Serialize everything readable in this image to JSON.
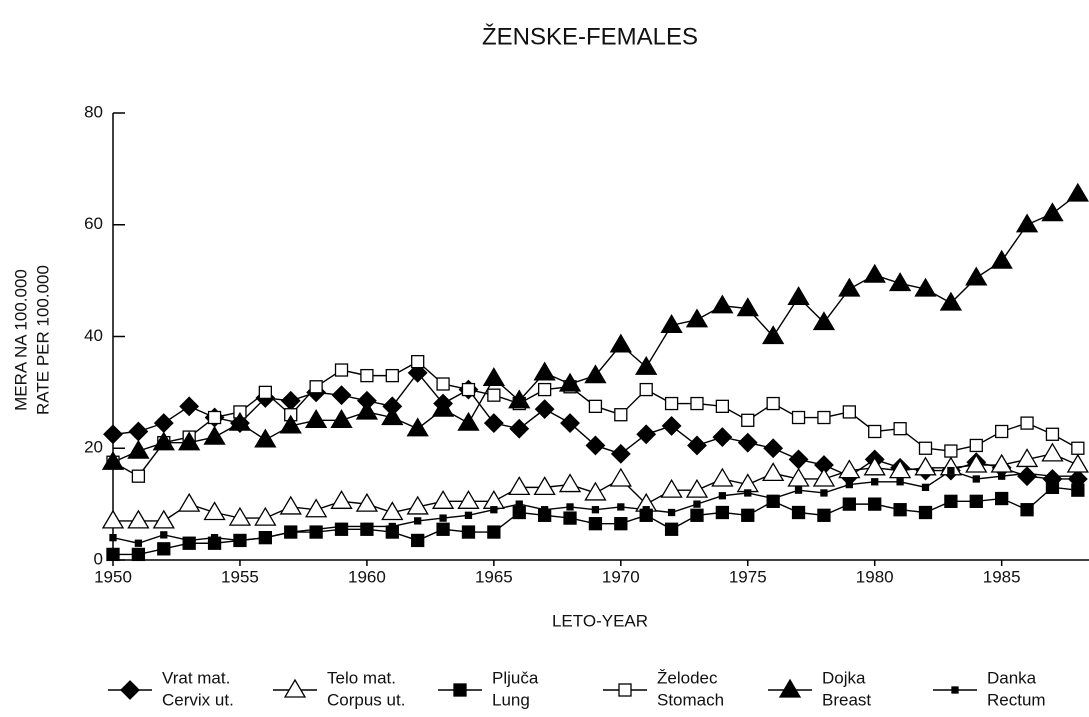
{
  "chart_data": {
    "type": "line",
    "title": "ŽENSKE-FEMALES",
    "xlabel": "LETO-YEAR",
    "ylabel": [
      "MERA NA 100.000",
      "RATE PER 100.000"
    ],
    "x": [
      1950,
      1951,
      1952,
      1953,
      1954,
      1955,
      1956,
      1957,
      1958,
      1959,
      1960,
      1961,
      1962,
      1963,
      1964,
      1965,
      1966,
      1967,
      1968,
      1969,
      1970,
      1971,
      1972,
      1973,
      1974,
      1975,
      1976,
      1977,
      1978,
      1979,
      1980,
      1981,
      1982,
      1983,
      1984,
      1985,
      1986,
      1987,
      1988
    ],
    "xlim": [
      1950,
      1988.4
    ],
    "xticks": [
      1950,
      1955,
      1960,
      1965,
      1970,
      1975,
      1980,
      1985
    ],
    "ylim": [
      0,
      80
    ],
    "yticks": [
      0,
      20,
      40,
      60,
      80
    ],
    "grid": false,
    "legend": "bottom",
    "series": [
      {
        "name": [
          "Vrat mat.",
          "Cervix ut."
        ],
        "color": "#000000",
        "marker": "diamond",
        "filled": true,
        "values": [
          22.5,
          23,
          24.5,
          27.5,
          25.5,
          24.5,
          29,
          28.5,
          30,
          29.5,
          28.5,
          27.5,
          33.5,
          28,
          30.5,
          24.5,
          23.5,
          27,
          24.5,
          20.5,
          19,
          22.5,
          24,
          20.5,
          22,
          21,
          20,
          18,
          17,
          15,
          18,
          16.5,
          16,
          16,
          17.5,
          16.5,
          15,
          14.5,
          14.5
        ]
      },
      {
        "name": [
          "Telo mat.",
          "Corpus ut."
        ],
        "color": "#000000",
        "marker": "triangle",
        "filled": false,
        "values": [
          7,
          7,
          7,
          10,
          8.5,
          7.5,
          7.5,
          9.5,
          9,
          10.5,
          10,
          8.5,
          9.5,
          10.5,
          10.5,
          10.5,
          13,
          13,
          13.5,
          12,
          14.5,
          10,
          12.5,
          12.5,
          14.5,
          13.5,
          15.5,
          14.5,
          14.5,
          16,
          16.5,
          16,
          16.5,
          16.5,
          17,
          17,
          18,
          19,
          17
        ]
      },
      {
        "name": [
          "Pljuča",
          "Lung"
        ],
        "color": "#000000",
        "marker": "square",
        "filled": true,
        "values": [
          1,
          1,
          2,
          3,
          3,
          3.5,
          4,
          5,
          5,
          5.5,
          5.5,
          5,
          3.5,
          5.5,
          5,
          5,
          8.5,
          8,
          7.5,
          6.5,
          6.5,
          8,
          5.5,
          8,
          8.5,
          8,
          10.5,
          8.5,
          8,
          10,
          10,
          9,
          8.5,
          10.5,
          10.5,
          11,
          9,
          13,
          12.5
        ]
      },
      {
        "name": [
          "Želodec",
          "Stomach"
        ],
        "color": "#000000",
        "marker": "square",
        "filled": false,
        "values": [
          17.5,
          15,
          21,
          22,
          25.5,
          26.5,
          30,
          26,
          31,
          34,
          33,
          33,
          35.5,
          31.5,
          30.5,
          29.5,
          28,
          30.5,
          31,
          27.5,
          26,
          30.5,
          28,
          28,
          27.5,
          25,
          28,
          25.5,
          25.5,
          26.5,
          23,
          23.5,
          20,
          19.5,
          20.5,
          23,
          24.5,
          22.5,
          20
        ]
      },
      {
        "name": [
          "Dojka",
          "Breast"
        ],
        "color": "#000000",
        "marker": "triangle",
        "filled": true,
        "values": [
          17.5,
          19.5,
          21,
          21,
          22,
          24.5,
          21.5,
          24,
          25,
          25,
          26.5,
          25.5,
          23.5,
          27,
          24.5,
          32.5,
          28.5,
          33.5,
          31.5,
          33,
          38.5,
          34.5,
          42,
          43,
          45.5,
          45,
          40,
          47,
          42.5,
          48.5,
          51,
          49.5,
          48.5,
          46,
          50.5,
          53.5,
          60,
          62,
          65.5
        ]
      },
      {
        "name": [
          "Danka",
          "Rectum"
        ],
        "color": "#000000",
        "marker": "smallsquare",
        "filled": true,
        "values": [
          4,
          3,
          4.5,
          3.5,
          4,
          3.5,
          4,
          5,
          5.5,
          6,
          6,
          6,
          7,
          7.5,
          8,
          9,
          10,
          9,
          9.5,
          9,
          9.5,
          9,
          8.5,
          10,
          11.5,
          12,
          11,
          12.5,
          12,
          13.5,
          14,
          14,
          13,
          16,
          14.5,
          15,
          15.5,
          15,
          15
        ]
      }
    ]
  }
}
